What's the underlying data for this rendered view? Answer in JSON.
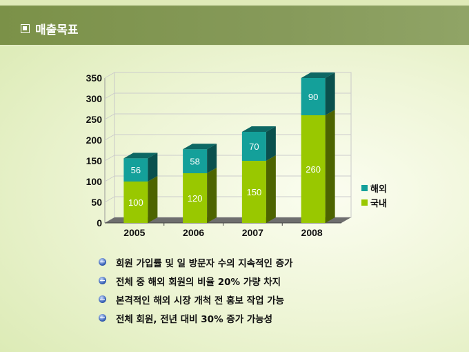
{
  "header": {
    "title": "매출목표"
  },
  "chart_data": {
    "type": "bar",
    "stacked": true,
    "categories": [
      "2005",
      "2006",
      "2007",
      "2008"
    ],
    "series": [
      {
        "name": "국내",
        "values": [
          100,
          120,
          150,
          260
        ],
        "color": "#99c800"
      },
      {
        "name": "해외",
        "values": [
          56,
          58,
          70,
          90
        ],
        "color": "#14a09a"
      }
    ],
    "legend_order": [
      "해외",
      "국내"
    ],
    "ylim": [
      0,
      350
    ],
    "yticks": [
      0,
      50,
      100,
      150,
      200,
      250,
      300,
      350
    ],
    "legend": "right",
    "grid": true,
    "title": "",
    "xlabel": "",
    "ylabel": ""
  },
  "bullets": [
    "회원 가입률 및 일 방문자 수의 지속적인 증가",
    "전체 중 해외 회원의 비율 20% 가량 차지",
    "본격적인 해외 시장 개척 전 홍보 작업 가능",
    "전체 회원, 전년 대비 30% 증가 가능성"
  ]
}
